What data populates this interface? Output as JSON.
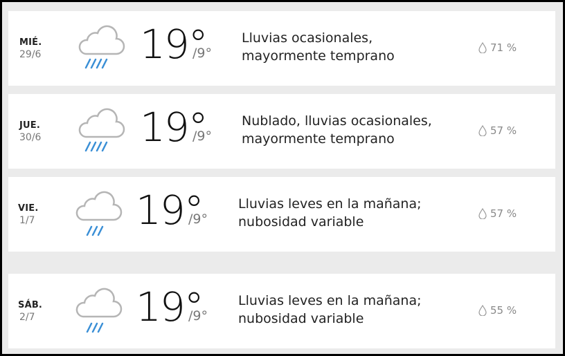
{
  "colors": {
    "rain": "#3a8fd6",
    "cloud": "#b5b5b5",
    "background": "#ebebeb"
  },
  "forecast": [
    {
      "day": "MIÉ.",
      "date": "29/6",
      "icon": "cloud-heavy-rain-icon",
      "high": "19°",
      "low": "/9°",
      "description": [
        "Lluvias ocasionales,",
        "mayormente temprano"
      ],
      "precip": "71 %",
      "streaks": 4
    },
    {
      "day": "JUE.",
      "date": "30/6",
      "icon": "cloud-heavy-rain-icon",
      "high": "19°",
      "low": "/9°",
      "description": [
        "Nublado, lluvias ocasionales,",
        "mayormente temprano"
      ],
      "precip": "57 %",
      "streaks": 4
    },
    {
      "day": "VIE.",
      "date": "1/7",
      "icon": "cloud-light-rain-icon",
      "high": "19°",
      "low": "/9°",
      "description": [
        "Lluvias leves en la mañana;",
        "nubosidad variable"
      ],
      "precip": "57 %",
      "streaks": 3
    },
    {
      "day": "SÁB.",
      "date": "2/7",
      "icon": "cloud-light-rain-icon",
      "high": "19°",
      "low": "/9°",
      "description": [
        "Lluvias leves en la mañana;",
        "nubosidad variable"
      ],
      "precip": "55 %",
      "streaks": 3
    }
  ]
}
